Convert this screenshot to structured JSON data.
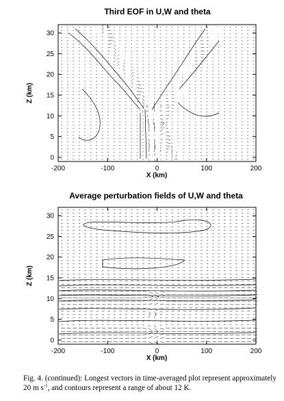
{
  "figure": {
    "caption_prefix": "Fig. 4. (continued): Longest vectors in time-averaged plot represent approximately 20 m s",
    "caption_sup": "-1",
    "caption_suffix": ", and contours represent a range of about 12 K."
  },
  "panels": [
    {
      "id": "top",
      "title": "Third EOF in U,W and theta",
      "xlabel": "X (km)",
      "ylabel": "Z (km)",
      "xlim": [
        -200,
        200
      ],
      "ylim": [
        -1,
        32
      ],
      "xticks": [
        -200,
        -100,
        0,
        100,
        200
      ],
      "yticks": [
        0,
        5,
        10,
        15,
        20,
        25,
        30
      ]
    },
    {
      "id": "bottom",
      "title": "Average perturbation fields of U,W and theta",
      "xlabel": "X (km)",
      "ylabel": "Z (km)",
      "xlim": [
        -200,
        200
      ],
      "ylim": [
        -1,
        32
      ],
      "xticks": [
        -200,
        -100,
        0,
        100,
        200
      ],
      "yticks": [
        0,
        5,
        10,
        15,
        20,
        25,
        30
      ]
    }
  ]
}
